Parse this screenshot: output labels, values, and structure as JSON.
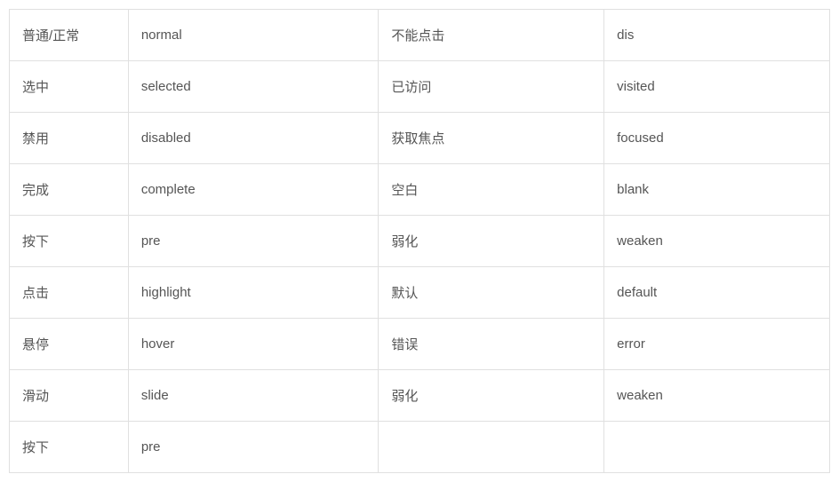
{
  "table": {
    "type": "table",
    "border_color": "#e0e0e0",
    "text_color": "#555555",
    "background_color": "#ffffff",
    "font_size": 15,
    "cell_padding": "16px 14px",
    "column_widths_pct": [
      14.5,
      30.5,
      27.5,
      27.5
    ],
    "rows": [
      {
        "c1": "普通/正常",
        "c2": "normal",
        "c3": "不能点击",
        "c4": "dis"
      },
      {
        "c1": "选中",
        "c2": "selected",
        "c3": "已访问",
        "c4": "visited"
      },
      {
        "c1": "禁用",
        "c2": "disabled",
        "c3": "获取焦点",
        "c4": "focused"
      },
      {
        "c1": "完成",
        "c2": "complete",
        "c3": "空白",
        "c4": "blank"
      },
      {
        "c1": "按下",
        "c2": "pre",
        "c3": "弱化",
        "c4": "weaken"
      },
      {
        "c1": "点击",
        "c2": "highlight",
        "c3": "默认",
        "c4": "default"
      },
      {
        "c1": "悬停",
        "c2": "hover",
        "c3": "错误",
        "c4": "error"
      },
      {
        "c1": "滑动",
        "c2": "slide",
        "c3": "弱化",
        "c4": "weaken"
      },
      {
        "c1": "按下",
        "c2": "pre",
        "c3": "",
        "c4": ""
      }
    ]
  }
}
